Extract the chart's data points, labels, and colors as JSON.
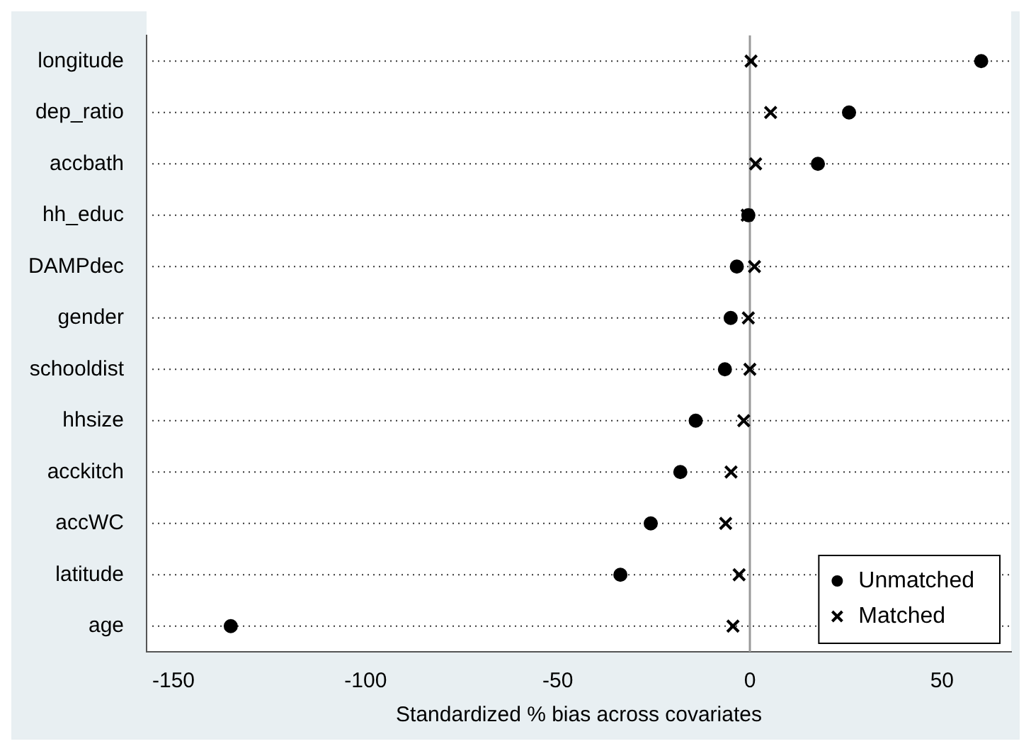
{
  "chart_data": {
    "type": "scatter",
    "orientation": "horizontal",
    "xlabel": "Standardized % bias across covariates",
    "categories": [
      "longitude",
      "dep_ratio",
      "accbath",
      "hh_educ",
      "DAMPdec",
      "gender",
      "schooldist",
      "hhsize",
      "acckitch",
      "accWC",
      "latitude",
      "age"
    ],
    "series": [
      {
        "name": "Unmatched",
        "color": "#000000",
        "marker": "circle",
        "values": [
          60.2,
          25.8,
          17.7,
          -0.4,
          -3.4,
          -5.0,
          -6.5,
          -14.1,
          -18.1,
          -25.8,
          -33.7,
          -135.1
        ]
      },
      {
        "name": "Matched",
        "color": "#000000",
        "marker": "cross",
        "values": [
          0.3,
          5.4,
          1.5,
          -0.7,
          1.2,
          -0.4,
          0,
          -1.6,
          -4.9,
          -6.3,
          -2.8,
          -4.4
        ]
      }
    ],
    "xlim": [
      -157,
      68
    ],
    "xticks": [
      -150,
      -100,
      -50,
      0,
      50
    ],
    "ref_lines": [
      {
        "axis": "x",
        "value": 0,
        "color": "#999999"
      }
    ],
    "grid": "y",
    "line_style": "dotted",
    "legend": "bottom right"
  }
}
